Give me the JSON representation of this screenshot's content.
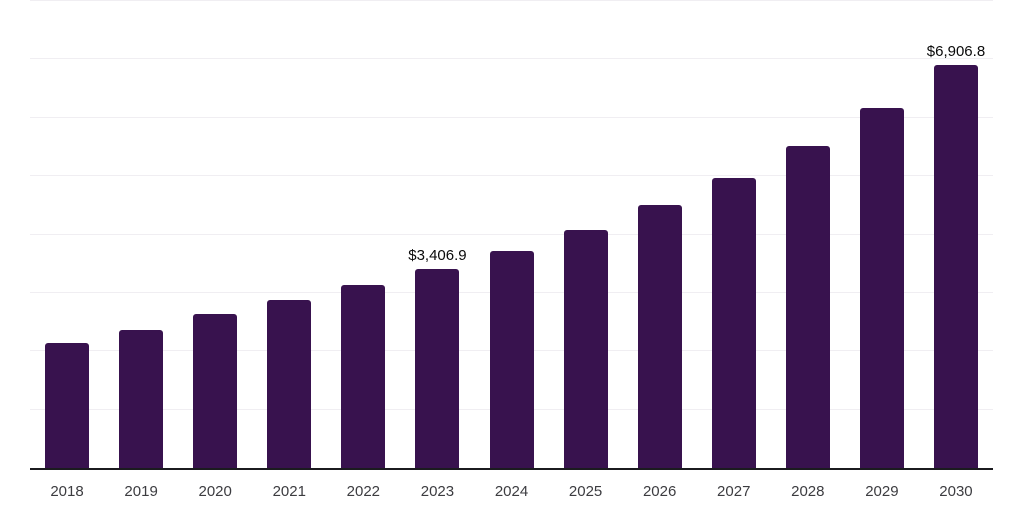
{
  "chart_data": {
    "type": "bar",
    "title": "",
    "xlabel": "",
    "ylabel": "",
    "categories": [
      "2018",
      "2019",
      "2020",
      "2021",
      "2022",
      "2023",
      "2024",
      "2025",
      "2026",
      "2027",
      "2028",
      "2029",
      "2030"
    ],
    "values": [
      2140,
      2370,
      2630,
      2875,
      3140,
      3406.9,
      3720,
      4080,
      4505,
      4965,
      5515,
      6160,
      6906.8
    ],
    "value_labels": [
      "",
      "",
      "",
      "",
      "",
      "$3,406.9",
      "",
      "",
      "",
      "",
      "",
      "",
      "$6,906.8"
    ],
    "ylim": [
      0,
      8000
    ],
    "gridline_step": 1000,
    "grid": true,
    "legend": false,
    "y_axis_tick_labels_visible": false,
    "colors": {
      "bar": "#38124E",
      "axis": "#1b1b1f",
      "gridline": "#f0eef2",
      "value_label": "#0a0a0a",
      "tick_label": "#3c3c40",
      "background": "#ffffff"
    }
  }
}
